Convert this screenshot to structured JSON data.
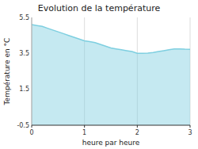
{
  "chart_data": {
    "type": "area",
    "title": "Evolution de la température",
    "xlabel": "heure par heure",
    "ylabel": "Température en °C",
    "x": [
      0.0,
      0.1,
      0.2,
      0.3,
      0.4,
      0.5,
      0.6,
      0.7,
      0.8,
      0.9,
      1.0,
      1.1,
      1.2,
      1.3,
      1.4,
      1.5,
      1.6,
      1.7,
      1.8,
      1.9,
      2.0,
      2.1,
      2.2,
      2.3,
      2.4,
      2.5,
      2.6,
      2.7,
      2.8,
      2.9,
      3.0
    ],
    "values": [
      5.1,
      5.05,
      5.0,
      4.9,
      4.8,
      4.7,
      4.6,
      4.5,
      4.4,
      4.3,
      4.2,
      4.15,
      4.1,
      4.0,
      3.9,
      3.8,
      3.75,
      3.7,
      3.65,
      3.6,
      3.5,
      3.5,
      3.52,
      3.55,
      3.6,
      3.65,
      3.7,
      3.75,
      3.75,
      3.73,
      3.72
    ],
    "color": "#7ecfe0",
    "xlim": [
      0,
      3
    ],
    "ylim": [
      -0.5,
      5.5
    ],
    "xticks": [
      0,
      1,
      2,
      3
    ],
    "yticks": [
      -0.5,
      1.5,
      3.5,
      5.5
    ],
    "grid": "x"
  }
}
